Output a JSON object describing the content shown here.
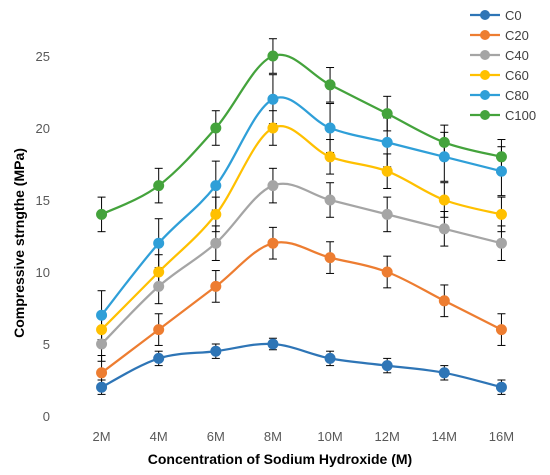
{
  "chart_data": {
    "type": "line",
    "smooth": true,
    "categories": [
      "2M",
      "4M",
      "6M",
      "8M",
      "10M",
      "12M",
      "14M",
      "16M"
    ],
    "xlabel": "Concentration of Sodium Hydroxide (M)",
    "ylabel": "Compressive strngthe (MPa)",
    "ylim": [
      0,
      25
    ],
    "yticks": [
      0,
      5,
      10,
      15,
      20,
      25
    ],
    "grid": false,
    "legend_position": "top-right",
    "error_bars": true,
    "series": [
      {
        "name": "C0",
        "color": "#2e75b6",
        "values": [
          2,
          4,
          4.5,
          5,
          4,
          3.5,
          3,
          2
        ],
        "errors": [
          0.5,
          0.5,
          0.5,
          0.4,
          0.5,
          0.5,
          0.5,
          0.5
        ]
      },
      {
        "name": "C20",
        "color": "#ed7d31",
        "values": [
          3,
          6,
          9,
          12,
          11,
          10,
          8,
          6
        ],
        "errors": [
          1.2,
          1.1,
          1.1,
          1.1,
          1.1,
          1.1,
          1.1,
          1.1
        ]
      },
      {
        "name": "C40",
        "color": "#a5a5a5",
        "values": [
          5,
          9,
          12,
          16,
          15,
          14,
          13,
          12
        ],
        "errors": [
          1.2,
          1.2,
          1.2,
          1.2,
          1.2,
          1.2,
          1.2,
          1.2
        ]
      },
      {
        "name": "C60",
        "color": "#ffc000",
        "values": [
          6,
          10,
          14,
          20,
          18,
          17,
          15,
          14
        ],
        "errors": [
          1.2,
          1.2,
          1.2,
          1.2,
          1.2,
          1.2,
          1.2,
          1.2
        ]
      },
      {
        "name": "C80",
        "color": "#2f9fd8",
        "values": [
          7,
          12,
          16,
          22,
          20,
          19,
          18,
          17
        ],
        "errors": [
          1.7,
          1.7,
          1.7,
          1.7,
          1.7,
          1.7,
          1.7,
          1.7
        ]
      },
      {
        "name": "C100",
        "color": "#44a33c",
        "values": [
          14,
          16,
          20,
          25,
          23,
          21,
          19,
          18
        ],
        "errors": [
          1.2,
          1.2,
          1.2,
          1.2,
          1.2,
          1.2,
          1.2,
          1.2
        ]
      }
    ]
  }
}
